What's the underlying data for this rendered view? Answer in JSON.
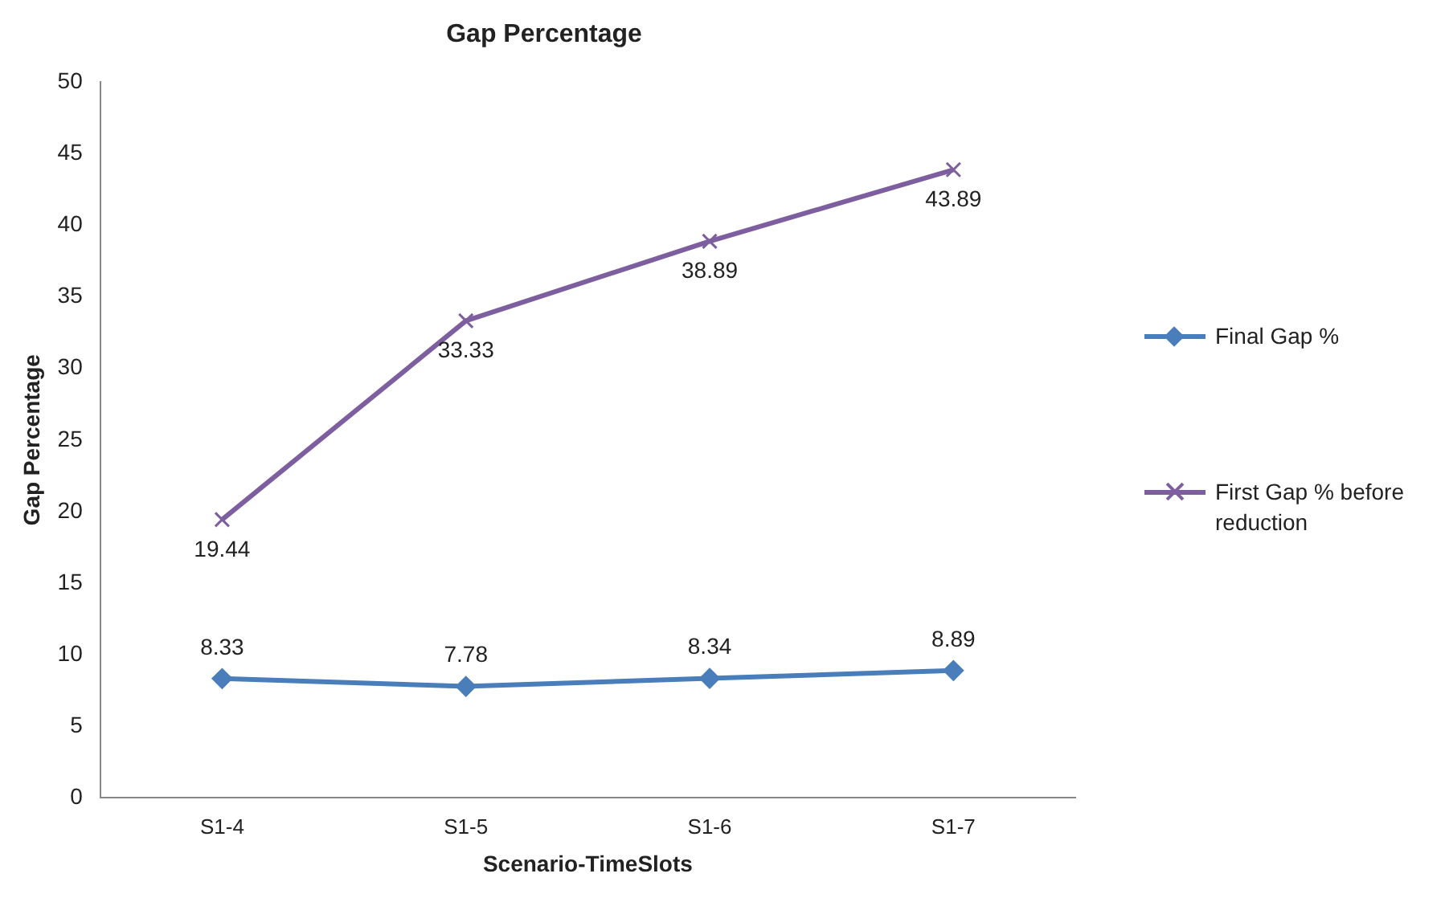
{
  "chart_data": {
    "type": "line",
    "title": "Gap Percentage",
    "xlabel": "Scenario-TimeSlots",
    "ylabel": "Gap Percentage",
    "categories": [
      "S1-4",
      "S1-5",
      "S1-6",
      "S1-7"
    ],
    "series": [
      {
        "name": "Final Gap %",
        "color": "#4a7ebb",
        "marker": "diamond",
        "values": [
          8.33,
          7.78,
          8.34,
          8.89
        ]
      },
      {
        "name": "First Gap % before reduction",
        "color": "#7d5fa0",
        "marker": "cross",
        "values": [
          19.44,
          33.33,
          38.89,
          43.89
        ]
      }
    ],
    "ylim": [
      0,
      50
    ],
    "yticks": [
      0,
      5,
      10,
      15,
      20,
      25,
      30,
      35,
      40,
      45,
      50
    ],
    "grid": false,
    "legend": "right",
    "data_labels": true
  }
}
